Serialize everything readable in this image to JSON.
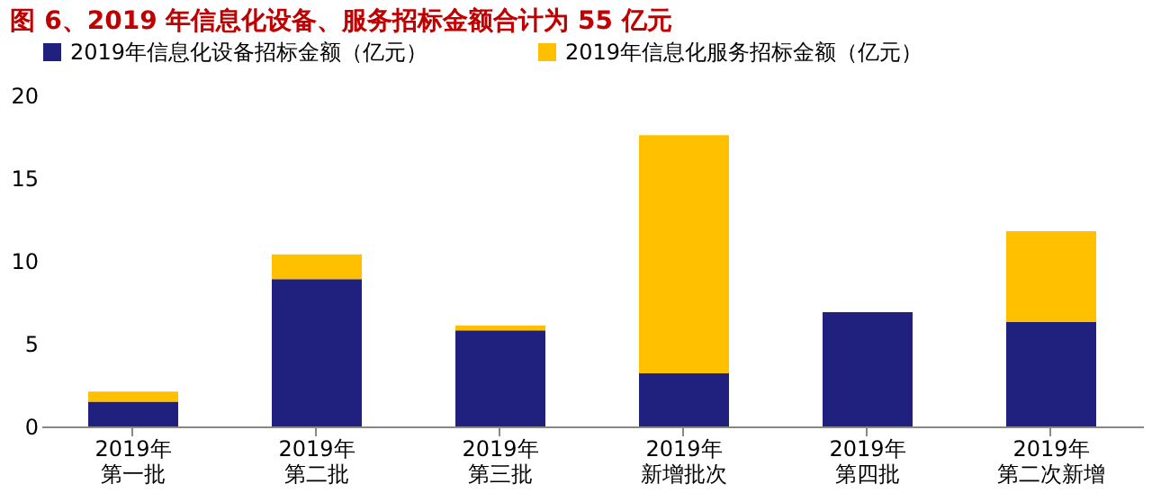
{
  "chart_data": {
    "type": "bar",
    "title": "图 6、2019 年信息化设备、服务招标金额合计为 55 亿元",
    "categories": [
      "2019年第一批",
      "2019年第二批",
      "2019年第三批",
      "2019年新增批次",
      "2019年第四批",
      "2019年第二次新增"
    ],
    "series": [
      {
        "name": "2019年信息化设备招标金额（亿元）",
        "color": "#20207e",
        "values": [
          1.5,
          8.9,
          5.8,
          3.2,
          6.9,
          6.3
        ]
      },
      {
        "name": "2019年信息化服务招标金额（亿元）",
        "color": "#ffc000",
        "values": [
          0.6,
          1.5,
          0.3,
          14.4,
          0,
          5.5
        ]
      }
    ],
    "stacked": true,
    "ylim": [
      0,
      20
    ],
    "yticks": [
      0,
      5,
      10,
      15,
      20
    ],
    "grid": false,
    "legend": "top"
  }
}
